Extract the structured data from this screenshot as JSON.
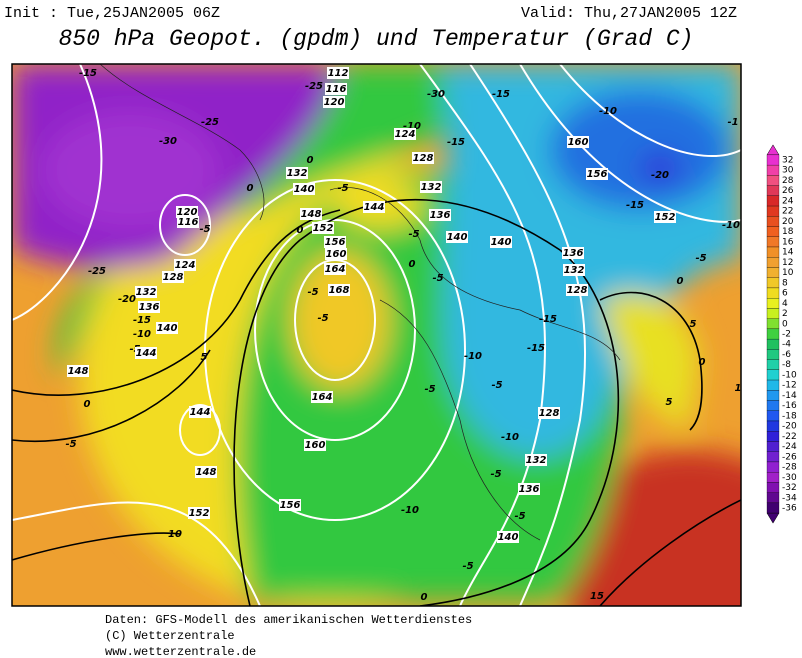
{
  "header": {
    "init": "Init : Tue,25JAN2005 06Z",
    "valid": "Valid: Thu,27JAN2005 12Z",
    "title": "850 hPa Geopot. (gpdm) und Temperatur (Grad C)"
  },
  "map": {
    "labels": [
      "-15",
      "112",
      "-25",
      "116",
      "120",
      "-30",
      "-15",
      "-10",
      "-1",
      "-25",
      "-30",
      "-10",
      "124",
      "-15",
      "160",
      "128",
      "0",
      "132",
      "156",
      "-20",
      "0",
      "140",
      "-5",
      "132",
      "-15",
      "120",
      "116",
      "-5",
      "148",
      "144",
      "136",
      "152",
      "-10",
      "0",
      "152",
      "-5",
      "140",
      "140",
      "136",
      "-5",
      "156",
      "160",
      "164",
      "0",
      "132",
      "-25",
      "124",
      "128",
      "-5",
      "0",
      "132",
      "-20",
      "-5",
      "168",
      "128",
      "136",
      "-15",
      "-15",
      "5",
      "140",
      "-10",
      "-5",
      "-5",
      "144",
      "-15",
      "5",
      "-10",
      "0",
      "148",
      "164",
      "-5",
      "-5",
      "1",
      "0",
      "144",
      "5",
      "128",
      "-5",
      "160",
      "-10",
      "-5",
      "132",
      "148",
      "136",
      "-10",
      "152",
      "10",
      "156",
      "-5",
      "140",
      "-5",
      "0",
      "15"
    ]
  },
  "legend": {
    "ticks": [
      32,
      30,
      28,
      26,
      24,
      22,
      20,
      18,
      16,
      14,
      12,
      10,
      8,
      6,
      4,
      2,
      0,
      -2,
      -4,
      -6,
      -8,
      -10,
      -12,
      -14,
      -16,
      -18,
      -20,
      -22,
      -24,
      -26,
      -28,
      -30,
      -32,
      -34,
      -36
    ],
    "colors": [
      "#e830d0",
      "#f040a8",
      "#f05080",
      "#e03858",
      "#d82828",
      "#e03820",
      "#e85020",
      "#f06020",
      "#f07828",
      "#f09028",
      "#f0a030",
      "#f0b030",
      "#f0c828",
      "#f0dc20",
      "#e8f020",
      "#c8f020",
      "#80e030",
      "#40d040",
      "#20c060",
      "#20c880",
      "#20d0a8",
      "#20d0d0",
      "#20b8e8",
      "#2098f0",
      "#2078f0",
      "#2058f0",
      "#2038e0",
      "#3020d8",
      "#5020d0",
      "#7020d0",
      "#9020d0",
      "#a020c8",
      "#8010b0",
      "#600890",
      "#400070"
    ]
  },
  "footer": {
    "source": "Daten: GFS-Modell des amerikanischen Wetterdienstes",
    "copyright": "(C) Wetterzentrale",
    "url": "www.wetterzentrale.de"
  }
}
